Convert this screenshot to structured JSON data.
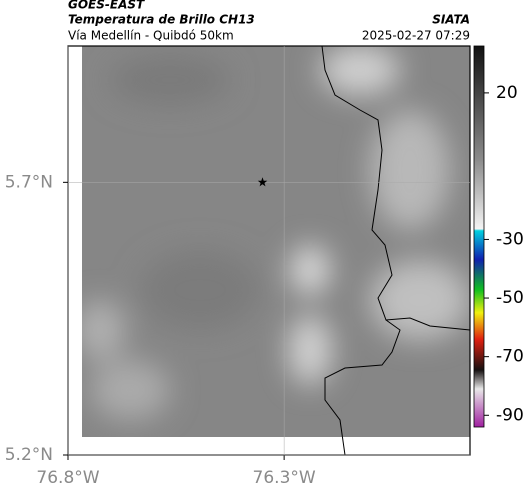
{
  "header": {
    "source": "GOES-EAST",
    "title": "Temperatura de Brillo CH13",
    "brand": "SIATA",
    "subtitle": "Vía Medellín - Quibdó 50km",
    "datetime": "2025-02-27 07:29"
  },
  "map": {
    "xlim": [
      -76.8,
      -75.87
    ],
    "ylim": [
      5.2,
      5.95
    ],
    "xticks": [
      {
        "value": -76.8,
        "label": "76.8°W"
      },
      {
        "value": -76.3,
        "label": "76.3°W"
      }
    ],
    "yticks": [
      {
        "value": 5.2,
        "label": "5.2°N"
      },
      {
        "value": 5.7,
        "label": "5.7°N"
      }
    ],
    "grid": true,
    "marker": {
      "lon": -76.35,
      "lat": 5.7
    }
  },
  "colorbar": {
    "lim": [
      -94,
      36
    ],
    "ticks": [
      20,
      -30,
      -50,
      -70,
      -90
    ]
  }
}
